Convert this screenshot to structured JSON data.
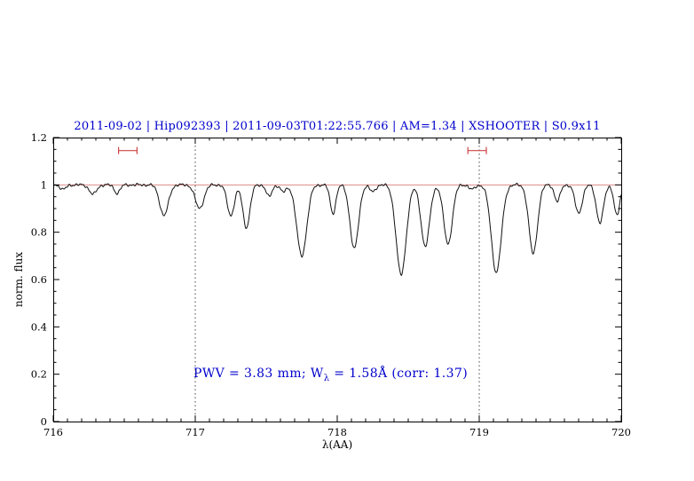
{
  "colors": {
    "title_text": "#0000cd",
    "annotation_text": "#0000cd",
    "spectrum": "#111111",
    "continuum_line": "#dd8888",
    "marker": "#cc4444",
    "frame": "#000000",
    "vline": "#333333"
  },
  "chart_data": {
    "type": "line",
    "title": "2011-09-02 | Hip092393 | 2011-09-03T01:22:55.766 | AM=1.34 | XSHOOTER | S0.9x11",
    "xlabel": "λ(AA)",
    "ylabel": "norm. flux",
    "xlim": [
      716,
      720
    ],
    "ylim": [
      0,
      1.2
    ],
    "xticks": [
      716,
      717,
      718,
      719,
      720
    ],
    "xtick_labels": [
      "716",
      "717",
      "718",
      "719",
      "720"
    ],
    "yticks": [
      0,
      0.2,
      0.4,
      0.6,
      0.8,
      1,
      1.2
    ],
    "ytick_labels": [
      "0",
      "0.2",
      "0.4",
      "0.6",
      "0.8",
      "1",
      "1.2"
    ],
    "x_minor_step": 0.1,
    "y_minor_step": 0.05,
    "grid": false,
    "vlines": [
      717,
      719
    ],
    "continuum": 1.0,
    "noise_amplitude": 0.004,
    "window_markers": [
      {
        "x1": 716.46,
        "x2": 716.59,
        "y": 1.145
      },
      {
        "x1": 718.92,
        "x2": 719.05,
        "y": 1.145
      }
    ],
    "absorption_lines": [
      [
        716.07,
        0.02,
        0.02
      ],
      [
        716.28,
        0.04,
        0.025
      ],
      [
        716.45,
        0.035,
        0.02
      ],
      [
        716.78,
        0.13,
        0.03
      ],
      [
        717.03,
        0.1,
        0.03
      ],
      [
        717.25,
        0.13,
        0.025
      ],
      [
        717.36,
        0.18,
        0.025
      ],
      [
        717.52,
        0.05,
        0.02
      ],
      [
        717.62,
        0.03,
        0.02
      ],
      [
        717.75,
        0.3,
        0.035
      ],
      [
        717.97,
        0.12,
        0.02
      ],
      [
        718.12,
        0.27,
        0.03
      ],
      [
        718.25,
        0.03,
        0.02
      ],
      [
        718.45,
        0.38,
        0.035
      ],
      [
        718.62,
        0.26,
        0.03
      ],
      [
        718.78,
        0.25,
        0.03
      ],
      [
        718.95,
        0.02,
        0.02
      ],
      [
        719.12,
        0.37,
        0.035
      ],
      [
        719.38,
        0.29,
        0.03
      ],
      [
        719.55,
        0.07,
        0.02
      ],
      [
        719.7,
        0.12,
        0.025
      ],
      [
        719.85,
        0.16,
        0.025
      ],
      [
        719.97,
        0.13,
        0.02
      ]
    ],
    "flux_model": "continuum + small noise - gaussian absorption lines [center, depth, sigma]",
    "annotation": {
      "prefix": "PWV = 3.83 mm; W",
      "sub": "λ",
      "suffix": " = 1.58Å (corr: 1.37)",
      "x": 717.0,
      "y": 0.2
    }
  }
}
